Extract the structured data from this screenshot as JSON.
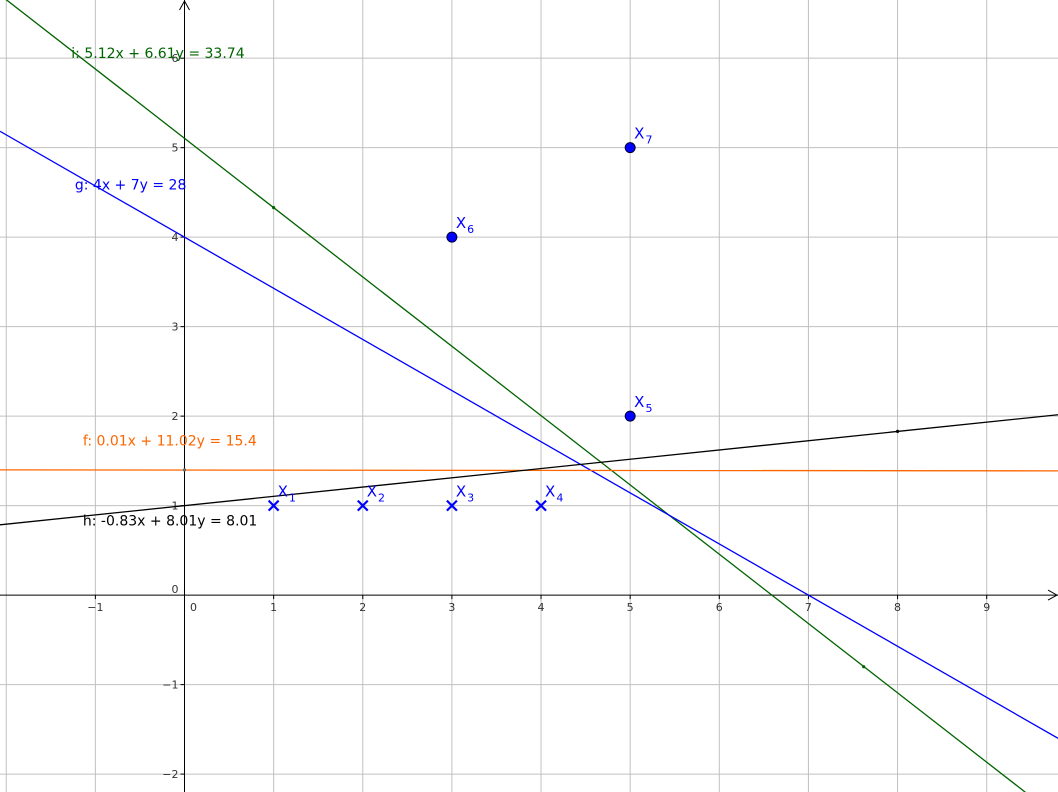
{
  "chart_data": {
    "type": "scatter",
    "xlim": [
      -2.07,
      9.8
    ],
    "ylim": [
      -2.2,
      6.65
    ],
    "grid": true,
    "x_ticks": [
      -1,
      0,
      1,
      2,
      3,
      4,
      5,
      6,
      7,
      8,
      9
    ],
    "y_ticks": [
      -2,
      -1,
      0,
      1,
      2,
      3,
      4,
      5,
      6
    ],
    "tick_labels": {
      "x": [
        "−1",
        "0",
        "1",
        "2",
        "3",
        "4",
        "5",
        "6",
        "7",
        "8",
        "9"
      ],
      "y": [
        "−2",
        "−1",
        "0",
        "1",
        "2",
        "3",
        "4",
        "5",
        "6"
      ]
    },
    "points": [
      {
        "name": "X",
        "sub": "1",
        "x": 1,
        "y": 1,
        "marker": "cross"
      },
      {
        "name": "X",
        "sub": "2",
        "x": 2,
        "y": 1,
        "marker": "cross"
      },
      {
        "name": "X",
        "sub": "3",
        "x": 3,
        "y": 1,
        "marker": "cross"
      },
      {
        "name": "X",
        "sub": "4",
        "x": 4,
        "y": 1,
        "marker": "cross"
      },
      {
        "name": "X",
        "sub": "5",
        "x": 5,
        "y": 2,
        "marker": "dot"
      },
      {
        "name": "X",
        "sub": "6",
        "x": 3,
        "y": 4,
        "marker": "dot"
      },
      {
        "name": "X",
        "sub": "7",
        "x": 5,
        "y": 5,
        "marker": "dot"
      }
    ],
    "lines": [
      {
        "label": "i: 5.12x + 6.61y = 33.74",
        "a": 5.12,
        "b": 6.61,
        "c": 33.74,
        "color": "#006400",
        "label_at": [
          -1.27,
          6.0
        ]
      },
      {
        "label": "g: 4x + 7y = 28",
        "a": 4,
        "b": 7,
        "c": 28,
        "color": "#0000ff",
        "label_at": [
          -1.23,
          4.53
        ]
      },
      {
        "label": "f: 0.01x + 11.02y = 15.4",
        "a": 0.01,
        "b": 11.02,
        "c": 15.4,
        "color": "#ff6600",
        "label_at": [
          -1.14,
          1.67
        ]
      },
      {
        "label": "h: -0.83x + 8.01y = 8.01",
        "a": -0.83,
        "b": 8.01,
        "c": 8.01,
        "color": "#000000",
        "label_at": [
          -1.14,
          0.78
        ]
      }
    ],
    "small_points": [
      {
        "x": 1,
        "y": 4.33,
        "color": "#006400"
      },
      {
        "x": 7.62,
        "y": -0.8,
        "color": "#006400"
      },
      {
        "x": 8,
        "y": 1.83,
        "color": "#000000"
      },
      {
        "x": 0,
        "y": 1.4,
        "color": "#666666"
      }
    ]
  }
}
